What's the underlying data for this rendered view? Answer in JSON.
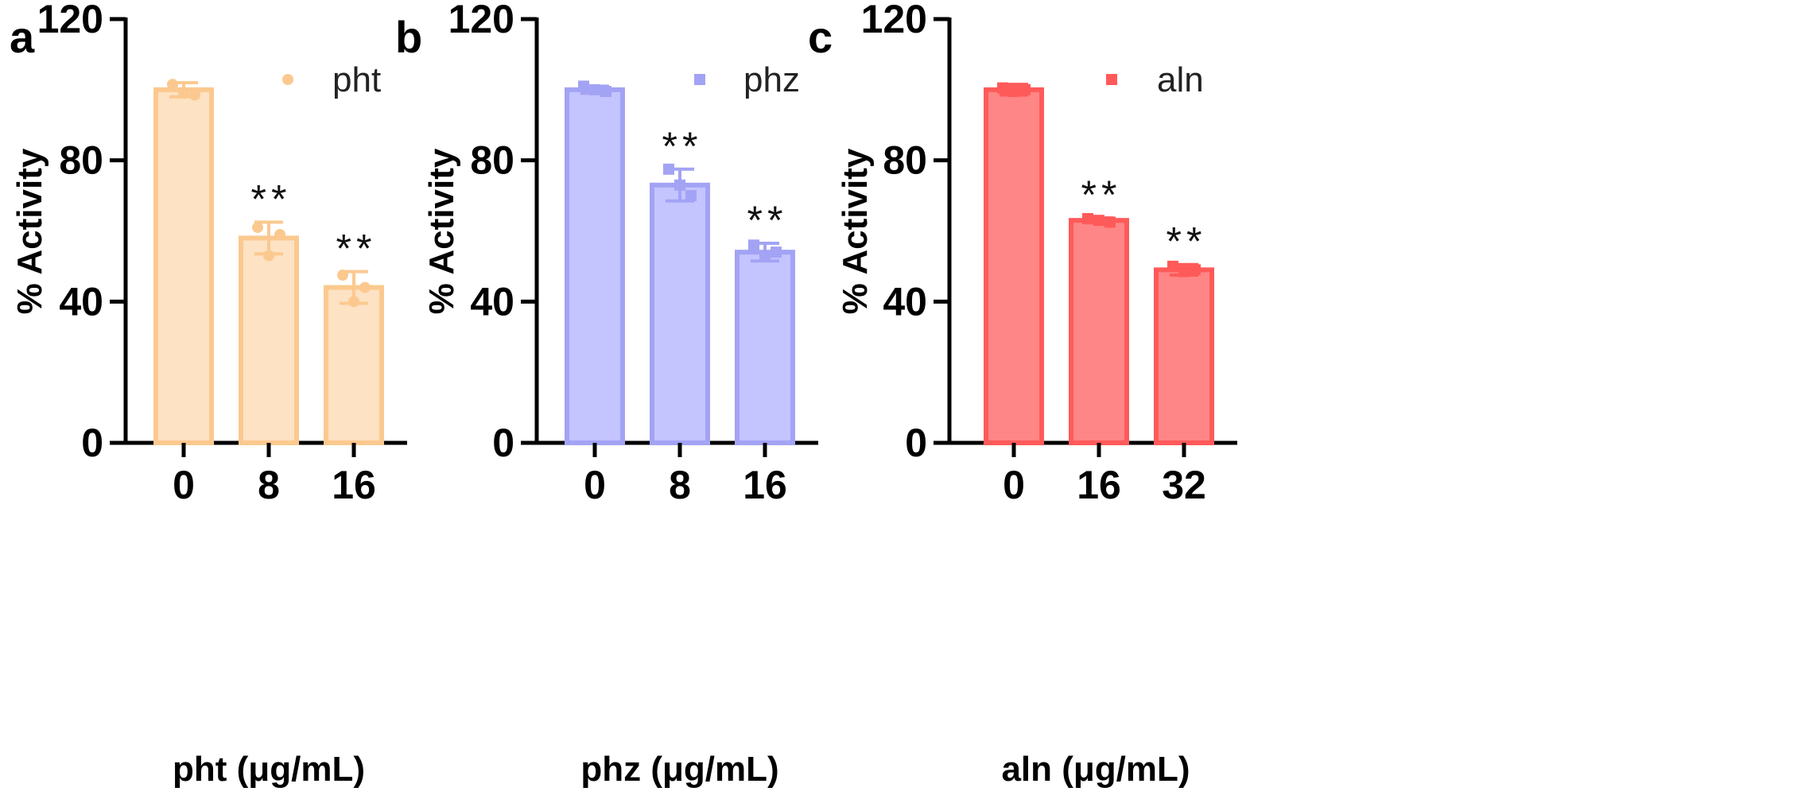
{
  "chart_data": [
    {
      "type": "bar",
      "panel_label": "a",
      "title": "",
      "xlabel": "pht (μg/mL)",
      "ylabel": "% Activity",
      "ylim": [
        0,
        120
      ],
      "yticks": [
        0,
        40,
        80,
        120
      ],
      "categories": [
        "0",
        "8",
        "16"
      ],
      "series": [
        {
          "name": "pht",
          "values": [
            100,
            58,
            44
          ],
          "errors": [
            2,
            4.5,
            4.5
          ],
          "points": [
            [
              101.5,
              99,
              98.5
            ],
            [
              61,
              53,
              59
            ],
            [
              47.5,
              40,
              44
            ]
          ],
          "marker": "circle",
          "fill": "#fde0c0",
          "stroke": "#fbc98f"
        }
      ],
      "annotations": [
        "",
        "**",
        "**"
      ],
      "legend": "top-right"
    },
    {
      "type": "bar",
      "panel_label": "b",
      "title": "",
      "xlabel": "phz (μg/mL)",
      "ylabel": "% Activity",
      "ylim": [
        0,
        120
      ],
      "yticks": [
        0,
        40,
        80,
        120
      ],
      "categories": [
        "0",
        "8",
        "16"
      ],
      "series": [
        {
          "name": "phz",
          "values": [
            100,
            73,
            54
          ],
          "errors": [
            1,
            4.5,
            2.5
          ],
          "points": [
            [
              101,
              100,
              99.5
            ],
            [
              77.5,
              73,
              70
            ],
            [
              56,
              53,
              54
            ]
          ],
          "marker": "square",
          "fill": "#c1c1ff",
          "stroke": "#a3a3f5"
        }
      ],
      "annotations": [
        "",
        "**",
        "**"
      ],
      "legend": "top-right"
    },
    {
      "type": "bar",
      "panel_label": "c",
      "title": "",
      "xlabel": "aln (μg/mL)",
      "ylabel": "% Activity",
      "ylim": [
        0,
        120
      ],
      "yticks": [
        0,
        40,
        80,
        120
      ],
      "categories": [
        "0",
        "16",
        "32"
      ],
      "series": [
        {
          "name": "aln",
          "values": [
            100,
            63,
            49
          ],
          "errors": [
            1.5,
            0.7,
            1.5
          ],
          "points": [
            [
              100.5,
              99.5,
              100
            ],
            [
              63.5,
              63,
              62.5
            ],
            [
              50,
              48.5,
              49
            ]
          ],
          "marker": "square",
          "fill": "#ff8080",
          "stroke": "#ff5a5a"
        }
      ],
      "annotations": [
        "",
        "**",
        "**"
      ],
      "legend": "top-right"
    }
  ]
}
